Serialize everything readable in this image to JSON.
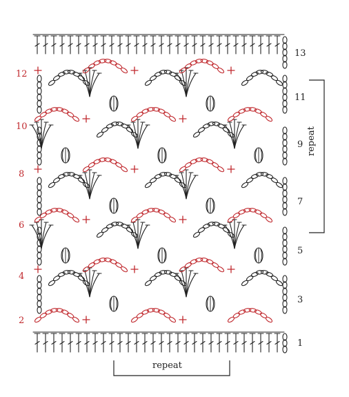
{
  "colors": {
    "red": "#c0282d",
    "black": "#222222"
  },
  "rows_left": [
    {
      "label": "2",
      "color": "red"
    },
    {
      "label": "4",
      "color": "red"
    },
    {
      "label": "6",
      "color": "red"
    },
    {
      "label": "8",
      "color": "red"
    },
    {
      "label": "10",
      "color": "red"
    },
    {
      "label": "12",
      "color": "red"
    }
  ],
  "rows_right": [
    {
      "label": "1"
    },
    {
      "label": "3"
    },
    {
      "label": "5"
    },
    {
      "label": "7"
    },
    {
      "label": "9"
    },
    {
      "label": "11"
    },
    {
      "label": "13"
    }
  ],
  "repeat_vertical": "repeat",
  "repeat_horizontal": "repeat"
}
